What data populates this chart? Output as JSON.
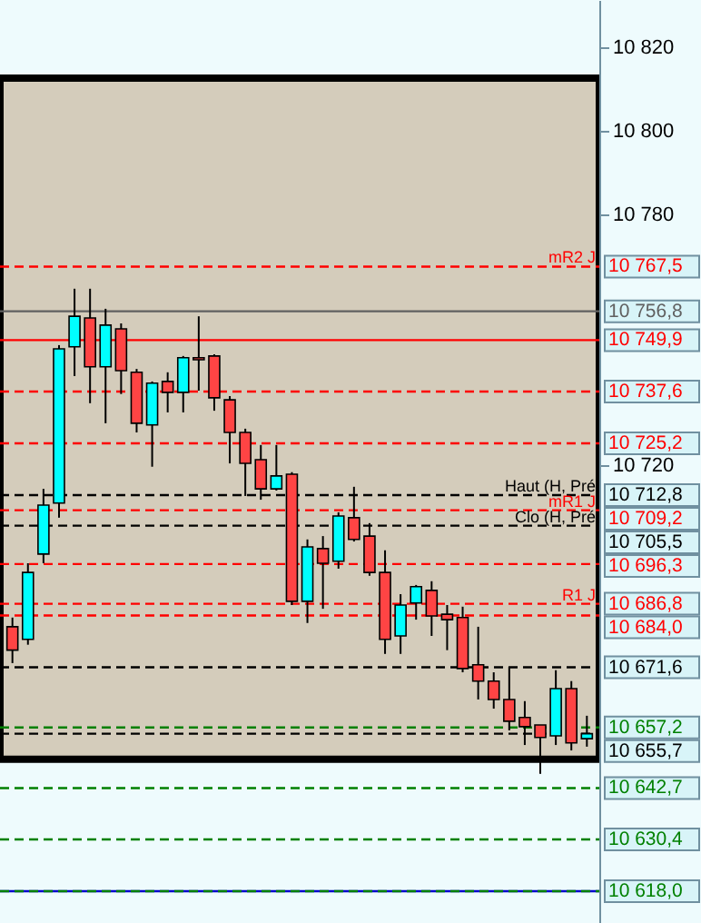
{
  "chart_data": {
    "type": "candlestick",
    "categories": [
      null,
      null,
      null,
      null,
      null,
      null,
      null,
      null,
      null,
      null,
      null,
      null,
      null,
      null,
      null,
      null,
      null,
      null,
      null,
      null,
      null,
      null,
      null,
      null,
      null,
      null,
      null,
      null,
      null,
      null,
      null,
      null,
      null,
      null,
      null,
      null,
      null,
      null
    ],
    "ohlc": [
      [
        10681.3,
        10683.5,
        10672.6,
        10675.7
      ],
      [
        10678.3,
        10696.5,
        10677.0,
        10694.3
      ],
      [
        10698.7,
        10714.3,
        10696.5,
        10710.4
      ],
      [
        10710.9,
        10748.7,
        10707.4,
        10747.8
      ],
      [
        10748.3,
        10762.2,
        10741.3,
        10755.6
      ],
      [
        10755.2,
        10762.2,
        10734.8,
        10743.5
      ],
      [
        10743.5,
        10757.4,
        10730.0,
        10753.5
      ],
      [
        10752.6,
        10753.9,
        10737.0,
        10742.6
      ],
      [
        10742.2,
        10743.0,
        10727.8,
        10730.0
      ],
      [
        10729.6,
        10740.0,
        10719.6,
        10739.6
      ],
      [
        10740.0,
        10742.2,
        10732.6,
        10737.4
      ],
      [
        10737.4,
        10746.1,
        10732.6,
        10745.7
      ],
      [
        10745.7,
        10755.6,
        10737.8,
        10745.2
      ],
      [
        10746.1,
        10746.5,
        10733.0,
        10736.1
      ],
      [
        10735.6,
        10736.5,
        10720.4,
        10727.8
      ],
      [
        10727.8,
        10728.7,
        10712.6,
        10720.4
      ],
      [
        10721.3,
        10724.8,
        10711.7,
        10714.3
      ],
      [
        10714.3,
        10724.8,
        10713.9,
        10717.4
      ],
      [
        10717.8,
        10718.3,
        10686.5,
        10687.4
      ],
      [
        10687.4,
        10702.2,
        10682.2,
        10700.4
      ],
      [
        10700.0,
        10703.0,
        10685.6,
        10696.5
      ],
      [
        10697.0,
        10708.7,
        10695.2,
        10707.8
      ],
      [
        10707.4,
        10714.8,
        10701.7,
        10702.2
      ],
      [
        10703.0,
        10706.1,
        10693.5,
        10694.3
      ],
      [
        10694.3,
        10699.6,
        10674.8,
        10678.3
      ],
      [
        10679.1,
        10689.1,
        10674.8,
        10686.5
      ],
      [
        10687.0,
        10691.3,
        10683.0,
        10690.9
      ],
      [
        10690.0,
        10692.2,
        10679.1,
        10683.9
      ],
      [
        10684.3,
        10686.5,
        10675.7,
        10683.0
      ],
      [
        10683.5,
        10686.1,
        10670.4,
        10671.3
      ],
      [
        10672.2,
        10681.3,
        10663.9,
        10668.3
      ],
      [
        10668.3,
        10670.4,
        10661.7,
        10663.9
      ],
      [
        10663.9,
        10671.7,
        10656.5,
        10658.7
      ],
      [
        10659.6,
        10663.5,
        10653.0,
        10657.4
      ],
      [
        10657.8,
        10657.8,
        10646.1,
        10654.8
      ],
      [
        10655.2,
        10670.9,
        10653.0,
        10666.5
      ],
      [
        10666.5,
        10668.3,
        10651.7,
        10653.5
      ],
      [
        10654.5,
        10660.0,
        10652.6,
        10655.7
      ]
    ],
    "ylim": [
      10610.4,
      10831.3
    ],
    "yticks": [
      {
        "value": 10820,
        "label": "10 820"
      },
      {
        "value": 10800,
        "label": "10 800"
      },
      {
        "value": 10780,
        "label": "10 780"
      },
      {
        "value": 10720,
        "label": "10 720"
      }
    ],
    "tick_labels": "y",
    "grid": false,
    "bands": [
      {
        "axis": "y",
        "from": 10649.6,
        "to": 10812.6,
        "color": "#d4ccbb"
      }
    ],
    "ref_lines": [
      {
        "axis": "y",
        "value": 10767.5,
        "label": "10 767,5",
        "color": "#ff0000",
        "line_style": "dashed"
      },
      {
        "axis": "y",
        "value": 10756.8,
        "label": "10 756,8",
        "color": "#606060",
        "line_style": "solid"
      },
      {
        "axis": "y",
        "value": 10749.9,
        "label": "10 749,9",
        "color": "#ff0000",
        "line_style": "solid"
      },
      {
        "axis": "y",
        "value": 10737.6,
        "label": "10 737,6",
        "color": "#ff0000",
        "line_style": "dashed"
      },
      {
        "axis": "y",
        "value": 10725.2,
        "label": "10 725,2",
        "color": "#ff0000",
        "line_style": "dashed"
      },
      {
        "axis": "y",
        "value": 10712.8,
        "label": "10 712,8",
        "color": "#000000",
        "line_style": "dashed"
      },
      {
        "axis": "y",
        "value": 10709.2,
        "label": "10 709,2",
        "color": "#ff0000",
        "line_style": "dashed"
      },
      {
        "axis": "y",
        "value": 10705.5,
        "label": "10 705,5",
        "color": "#000000",
        "line_style": "dashed"
      },
      {
        "axis": "y",
        "value": 10696.3,
        "label": "10 696,3",
        "color": "#ff0000",
        "line_style": "dashed"
      },
      {
        "axis": "y",
        "value": 10686.8,
        "label": "10 686,8",
        "color": "#ff0000",
        "line_style": "dashed"
      },
      {
        "axis": "y",
        "value": 10684.0,
        "label": "10 684,0",
        "color": "#ff0000",
        "line_style": "dashed"
      },
      {
        "axis": "y",
        "value": 10671.6,
        "label": "10 671,6",
        "color": "#000000",
        "line_style": "dashed"
      },
      {
        "axis": "y",
        "value": 10657.2,
        "label": "10 657,2",
        "color": "#008000",
        "line_style": "dashed"
      },
      {
        "axis": "y",
        "value": 10655.7,
        "label": "10 655,7",
        "color": "#000000",
        "line_style": "dashed"
      },
      {
        "axis": "y",
        "value": 10642.7,
        "label": "10 642,7",
        "color": "#008000",
        "line_style": "dashed"
      },
      {
        "axis": "y",
        "value": 10630.4,
        "label": "10 630,4",
        "color": "#008000",
        "line_style": "dashed"
      },
      {
        "axis": "y",
        "value": 10618.0,
        "label": "10 618,0",
        "color": "#008000",
        "line_style": "dashed"
      },
      {
        "axis": "y",
        "value": 10618.0,
        "label": null,
        "color": "#0000cc",
        "line_style": "solid"
      }
    ],
    "annotations": [
      {
        "text": "mR2 J",
        "y": 10767.5
      },
      {
        "text": "Haut (H, Pré",
        "y": 10712.8
      },
      {
        "text": "mR1 J",
        "y": 10709.2
      },
      {
        "text": "Clo (H, Pré",
        "y": 10705.5
      },
      {
        "text": "R1 J",
        "y": 10686.8
      }
    ]
  }
}
